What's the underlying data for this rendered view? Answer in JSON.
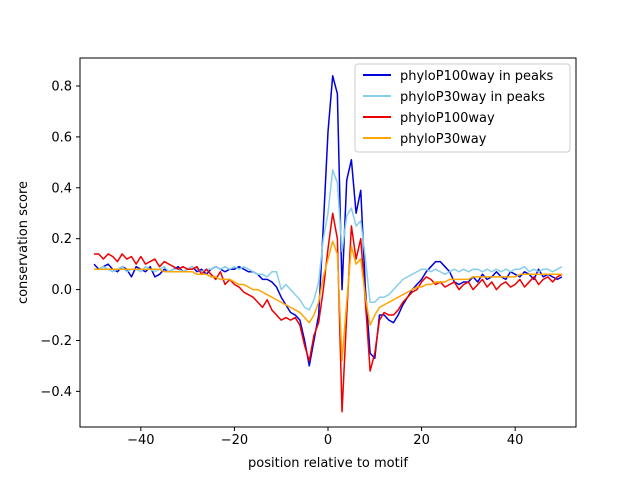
{
  "chart_data": {
    "type": "line",
    "title": "",
    "xlabel": "position relative to motif",
    "ylabel": "conservation score",
    "xlim": [
      -53,
      53
    ],
    "ylim": [
      -0.54,
      0.91
    ],
    "xticks": [
      -40,
      -20,
      0,
      20,
      40
    ],
    "xtick_labels": [
      "−40",
      "−20",
      "0",
      "20",
      "40"
    ],
    "yticks": [
      -0.4,
      -0.2,
      0.0,
      0.2,
      0.4,
      0.6,
      0.8
    ],
    "ytick_labels": [
      "−0.4",
      "−0.2",
      "0.0",
      "0.2",
      "0.4",
      "0.6",
      "0.8"
    ],
    "grid": false,
    "legend_position": "top-right",
    "x": [
      -50,
      -49,
      -48,
      -47,
      -46,
      -45,
      -44,
      -43,
      -42,
      -41,
      -40,
      -39,
      -38,
      -37,
      -36,
      -35,
      -34,
      -33,
      -32,
      -31,
      -30,
      -29,
      -28,
      -27,
      -26,
      -25,
      -24,
      -23,
      -22,
      -21,
      -20,
      -19,
      -18,
      -17,
      -16,
      -15,
      -14,
      -13,
      -12,
      -11,
      -10,
      -9,
      -8,
      -7,
      -6,
      -5,
      -4,
      -3,
      -2,
      -1,
      0,
      1,
      2,
      3,
      4,
      5,
      6,
      7,
      8,
      9,
      10,
      11,
      12,
      13,
      14,
      15,
      16,
      17,
      18,
      19,
      20,
      21,
      22,
      23,
      24,
      25,
      26,
      27,
      28,
      29,
      30,
      31,
      32,
      33,
      34,
      35,
      36,
      37,
      38,
      39,
      40,
      41,
      42,
      43,
      44,
      45,
      46,
      47,
      48,
      49,
      50
    ],
    "series": [
      {
        "name": "phyloP100way in peaks",
        "color": "#0000dd",
        "values": [
          0.1,
          0.08,
          0.09,
          0.1,
          0.08,
          0.07,
          0.09,
          0.08,
          0.05,
          0.09,
          0.08,
          0.07,
          0.09,
          0.05,
          0.06,
          0.08,
          0.07,
          0.08,
          0.09,
          0.07,
          0.08,
          0.09,
          0.07,
          0.08,
          0.06,
          0.08,
          0.09,
          0.08,
          0.07,
          0.08,
          0.08,
          0.09,
          0.08,
          0.07,
          0.07,
          0.06,
          0.04,
          0.04,
          0.03,
          0.01,
          -0.03,
          -0.06,
          -0.09,
          -0.1,
          -0.12,
          -0.2,
          -0.3,
          -0.2,
          -0.1,
          0.25,
          0.62,
          0.84,
          0.77,
          0.0,
          0.43,
          0.51,
          0.3,
          0.39,
          0.0,
          -0.25,
          -0.27,
          -0.1,
          -0.1,
          -0.12,
          -0.13,
          -0.1,
          -0.06,
          -0.03,
          0.0,
          0.02,
          0.04,
          0.07,
          0.09,
          0.11,
          0.11,
          0.09,
          0.07,
          0.03,
          0.02,
          0.03,
          0.03,
          0.05,
          0.03,
          0.06,
          0.04,
          0.05,
          0.07,
          0.05,
          0.04,
          0.07,
          0.06,
          0.05,
          0.07,
          0.06,
          0.04,
          0.08,
          0.05,
          0.06,
          0.05,
          0.04,
          0.05
        ]
      },
      {
        "name": "phyloP30way in peaks",
        "color": "#87ceeb",
        "values": [
          0.08,
          0.08,
          0.09,
          0.08,
          0.07,
          0.08,
          0.09,
          0.07,
          0.08,
          0.08,
          0.07,
          0.09,
          0.08,
          0.07,
          0.08,
          0.09,
          0.07,
          0.08,
          0.08,
          0.07,
          0.08,
          0.09,
          0.08,
          0.07,
          0.08,
          0.08,
          0.09,
          0.08,
          0.09,
          0.08,
          0.09,
          0.08,
          0.09,
          0.08,
          0.07,
          0.06,
          0.06,
          0.05,
          0.07,
          0.07,
          0.0,
          0.02,
          0.0,
          -0.02,
          -0.04,
          -0.07,
          -0.08,
          -0.04,
          0.03,
          0.2,
          0.3,
          0.47,
          0.42,
          0.15,
          0.29,
          0.32,
          0.25,
          0.27,
          0.12,
          -0.05,
          -0.05,
          -0.03,
          -0.03,
          -0.02,
          0.0,
          0.02,
          0.04,
          0.05,
          0.06,
          0.07,
          0.08,
          0.08,
          0.07,
          0.08,
          0.07,
          0.06,
          0.07,
          0.08,
          0.07,
          0.08,
          0.07,
          0.08,
          0.08,
          0.07,
          0.08,
          0.07,
          0.08,
          0.07,
          0.08,
          0.07,
          0.08,
          0.08,
          0.09,
          0.07,
          0.08,
          0.07,
          0.08,
          0.08,
          0.07,
          0.08,
          0.09
        ]
      },
      {
        "name": "phyloP100way",
        "color": "#ee0000",
        "values": [
          0.14,
          0.14,
          0.12,
          0.14,
          0.13,
          0.11,
          0.14,
          0.12,
          0.13,
          0.1,
          0.13,
          0.1,
          0.11,
          0.12,
          0.09,
          0.11,
          0.1,
          0.09,
          0.08,
          0.09,
          0.08,
          0.08,
          0.09,
          0.06,
          0.08,
          0.06,
          0.04,
          0.07,
          0.02,
          0.04,
          0.02,
          0.01,
          -0.01,
          -0.02,
          -0.03,
          -0.05,
          -0.07,
          -0.04,
          -0.08,
          -0.1,
          -0.12,
          -0.11,
          -0.12,
          -0.11,
          -0.14,
          -0.22,
          -0.28,
          -0.18,
          -0.13,
          0.0,
          0.16,
          0.3,
          0.2,
          -0.48,
          -0.1,
          0.25,
          0.12,
          0.2,
          -0.05,
          -0.32,
          -0.25,
          -0.12,
          -0.09,
          -0.1,
          -0.1,
          -0.08,
          -0.05,
          -0.03,
          -0.01,
          0.0,
          0.03,
          0.05,
          0.04,
          0.02,
          0.03,
          0.01,
          0.02,
          0.03,
          0.0,
          0.02,
          0.03,
          0.0,
          0.02,
          0.04,
          0.01,
          0.03,
          0.0,
          0.02,
          0.03,
          0.01,
          0.02,
          0.04,
          0.01,
          0.03,
          0.05,
          0.02,
          0.04,
          0.05,
          0.03,
          0.05,
          0.06
        ]
      },
      {
        "name": "phyloP30way",
        "color": "#ffa500",
        "values": [
          0.08,
          0.08,
          0.08,
          0.08,
          0.08,
          0.08,
          0.08,
          0.08,
          0.08,
          0.08,
          0.08,
          0.08,
          0.08,
          0.08,
          0.08,
          0.07,
          0.07,
          0.07,
          0.07,
          0.07,
          0.07,
          0.07,
          0.06,
          0.06,
          0.06,
          0.05,
          0.05,
          0.04,
          0.04,
          0.04,
          0.03,
          0.02,
          0.02,
          0.01,
          0.0,
          0.0,
          -0.01,
          -0.02,
          -0.03,
          -0.04,
          -0.05,
          -0.06,
          -0.07,
          -0.08,
          -0.09,
          -0.11,
          -0.13,
          -0.1,
          -0.05,
          0.05,
          0.12,
          0.19,
          0.14,
          -0.28,
          -0.05,
          0.17,
          0.1,
          0.12,
          -0.03,
          -0.14,
          -0.1,
          -0.07,
          -0.06,
          -0.05,
          -0.04,
          -0.03,
          -0.02,
          -0.01,
          0.0,
          0.01,
          0.01,
          0.02,
          0.02,
          0.03,
          0.03,
          0.03,
          0.04,
          0.04,
          0.04,
          0.04,
          0.04,
          0.05,
          0.05,
          0.05,
          0.05,
          0.05,
          0.05,
          0.05,
          0.05,
          0.05,
          0.05,
          0.06,
          0.06,
          0.06,
          0.06,
          0.06,
          0.06,
          0.06,
          0.06,
          0.06,
          0.06
        ]
      }
    ]
  }
}
